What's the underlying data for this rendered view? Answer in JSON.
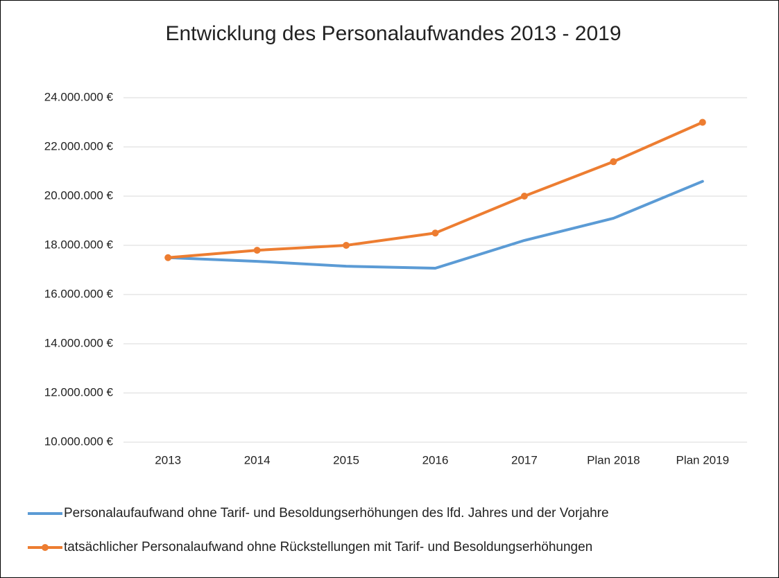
{
  "chart_data": {
    "type": "line",
    "title": "Entwicklung des Personalaufwandes 2013 - 2019",
    "categories": [
      "2013",
      "2014",
      "2015",
      "2016",
      "2017",
      "Plan 2018",
      "Plan 2019"
    ],
    "series": [
      {
        "name": "Personalaufaufwand ohne Tarif- und Besoldungserhöhungen des lfd. Jahres und der Vorjahre",
        "color": "#5b9bd5",
        "markers": false,
        "values": [
          17500000,
          17350000,
          17150000,
          17070000,
          18200000,
          19100000,
          20600000
        ]
      },
      {
        "name": "tatsächlicher Personalaufwand ohne Rückstellungen mit Tarif- und Besoldungserhöhungen",
        "color": "#ed7d31",
        "markers": true,
        "values": [
          17500000,
          17800000,
          18000000,
          18500000,
          20000000,
          21400000,
          23000000
        ]
      }
    ],
    "ylim": [
      10000000,
      24000000
    ],
    "yticks": [
      {
        "value": 10000000,
        "label": "10.000.000 €"
      },
      {
        "value": 12000000,
        "label": "12.000.000 €"
      },
      {
        "value": 14000000,
        "label": "14.000.000 €"
      },
      {
        "value": 16000000,
        "label": "16.000.000 €"
      },
      {
        "value": 18000000,
        "label": "18.000.000 €"
      },
      {
        "value": 20000000,
        "label": "20.000.000 €"
      },
      {
        "value": 22000000,
        "label": "22.000.000 €"
      },
      {
        "value": 24000000,
        "label": "24.000.000 €"
      }
    ],
    "grid": true,
    "legend": "bottom"
  }
}
